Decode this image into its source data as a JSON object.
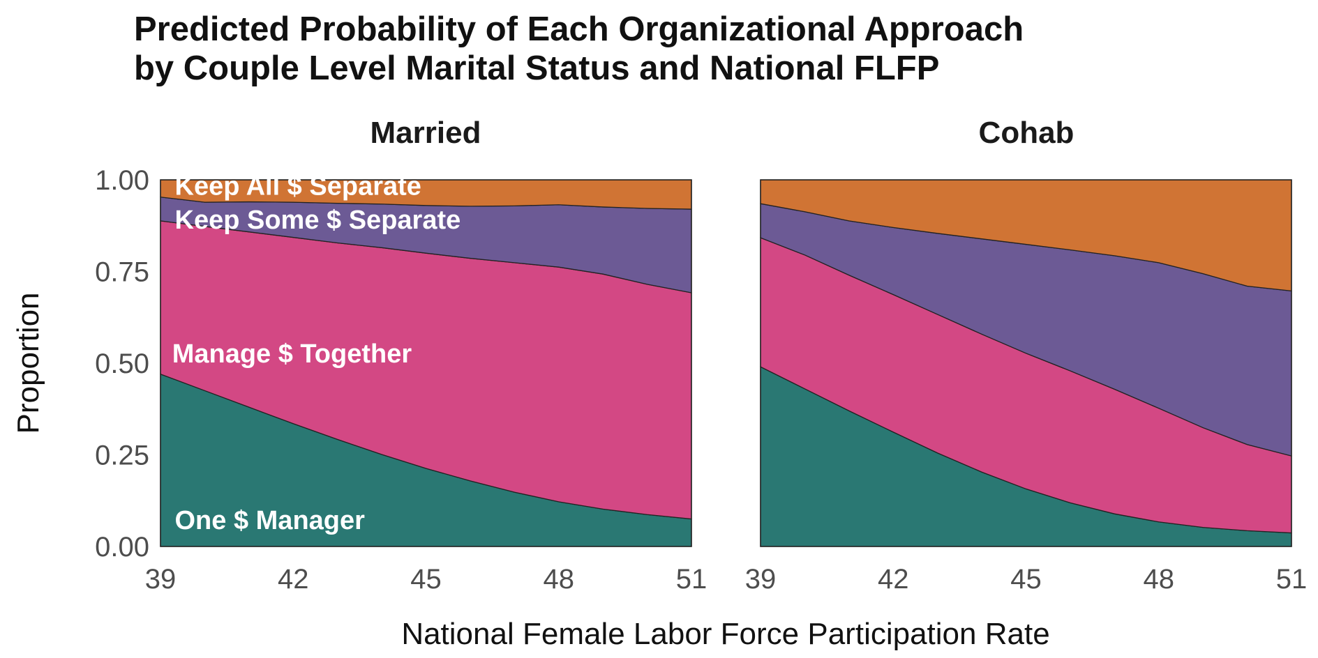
{
  "chart_data": {
    "type": "area",
    "stacked": true,
    "title": "Predicted Probability of Each Organizational Approach",
    "subtitle": "by Couple Level Marital Status and National FLFP",
    "xlabel": "National Female Labor Force Participation Rate",
    "ylabel": "Proportion",
    "xlim": [
      39,
      51
    ],
    "ylim": [
      0,
      1
    ],
    "x_ticks": [
      "39",
      "42",
      "45",
      "48",
      "51"
    ],
    "y_ticks": [
      "0.00",
      "0.25",
      "0.50",
      "0.75",
      "1.00"
    ],
    "grid": false,
    "legend": "inline labels",
    "x": [
      39,
      40,
      41,
      42,
      43,
      44,
      45,
      46,
      47,
      48,
      49,
      50,
      51
    ],
    "series_order": [
      "one_manager",
      "manage_together",
      "keep_some_separate",
      "keep_all_separate"
    ],
    "colors": {
      "one_manager": "#2a7873",
      "manage_together": "#d34884",
      "keep_some_separate": "#6c5a95",
      "keep_all_separate": "#d07434"
    },
    "panels": [
      {
        "facet": "Married",
        "series": [
          {
            "key": "one_manager",
            "values": [
              0.47,
              0.425,
              0.38,
              0.335,
              0.292,
              0.251,
              0.213,
              0.179,
              0.148,
              0.122,
              0.102,
              0.087,
              0.075
            ]
          },
          {
            "key": "manage_together",
            "values": [
              0.418,
              0.448,
              0.478,
              0.508,
              0.536,
              0.564,
              0.587,
              0.607,
              0.626,
              0.64,
              0.641,
              0.628,
              0.617
            ]
          },
          {
            "key": "keep_some_separate",
            "values": [
              0.065,
              0.066,
              0.082,
              0.096,
              0.108,
              0.119,
              0.13,
              0.142,
              0.155,
              0.17,
              0.183,
              0.207,
              0.228
            ]
          },
          {
            "key": "keep_all_separate",
            "values": [
              0.047,
              0.061,
              0.06,
              0.061,
              0.064,
              0.066,
              0.07,
              0.072,
              0.071,
              0.068,
              0.074,
              0.078,
              0.08
            ]
          }
        ],
        "labels": [
          {
            "text": "Keep All $ Separate",
            "key": "keep_all_separate"
          },
          {
            "text": "Keep Some $ Separate",
            "key": "keep_some_separate"
          },
          {
            "text": "Manage $ Together",
            "key": "manage_together"
          },
          {
            "text": "One $ Manager",
            "key": "one_manager"
          }
        ]
      },
      {
        "facet": "Cohab",
        "series": [
          {
            "key": "one_manager",
            "values": [
              0.49,
              0.43,
              0.37,
              0.312,
              0.255,
              0.203,
              0.157,
              0.119,
              0.089,
              0.067,
              0.052,
              0.043,
              0.037
            ]
          },
          {
            "key": "manage_together",
            "values": [
              0.352,
              0.365,
              0.37,
              0.375,
              0.378,
              0.376,
              0.37,
              0.36,
              0.34,
              0.31,
              0.272,
              0.235,
              0.21
            ]
          },
          {
            "key": "keep_some_separate",
            "values": [
              0.093,
              0.118,
              0.148,
              0.183,
              0.221,
              0.26,
              0.297,
              0.33,
              0.364,
              0.397,
              0.42,
              0.432,
              0.45
            ]
          },
          {
            "key": "keep_all_separate",
            "values": [
              0.065,
              0.087,
              0.112,
              0.13,
              0.146,
              0.161,
              0.176,
              0.191,
              0.207,
              0.226,
              0.256,
              0.29,
              0.303
            ]
          }
        ],
        "labels": []
      }
    ]
  }
}
